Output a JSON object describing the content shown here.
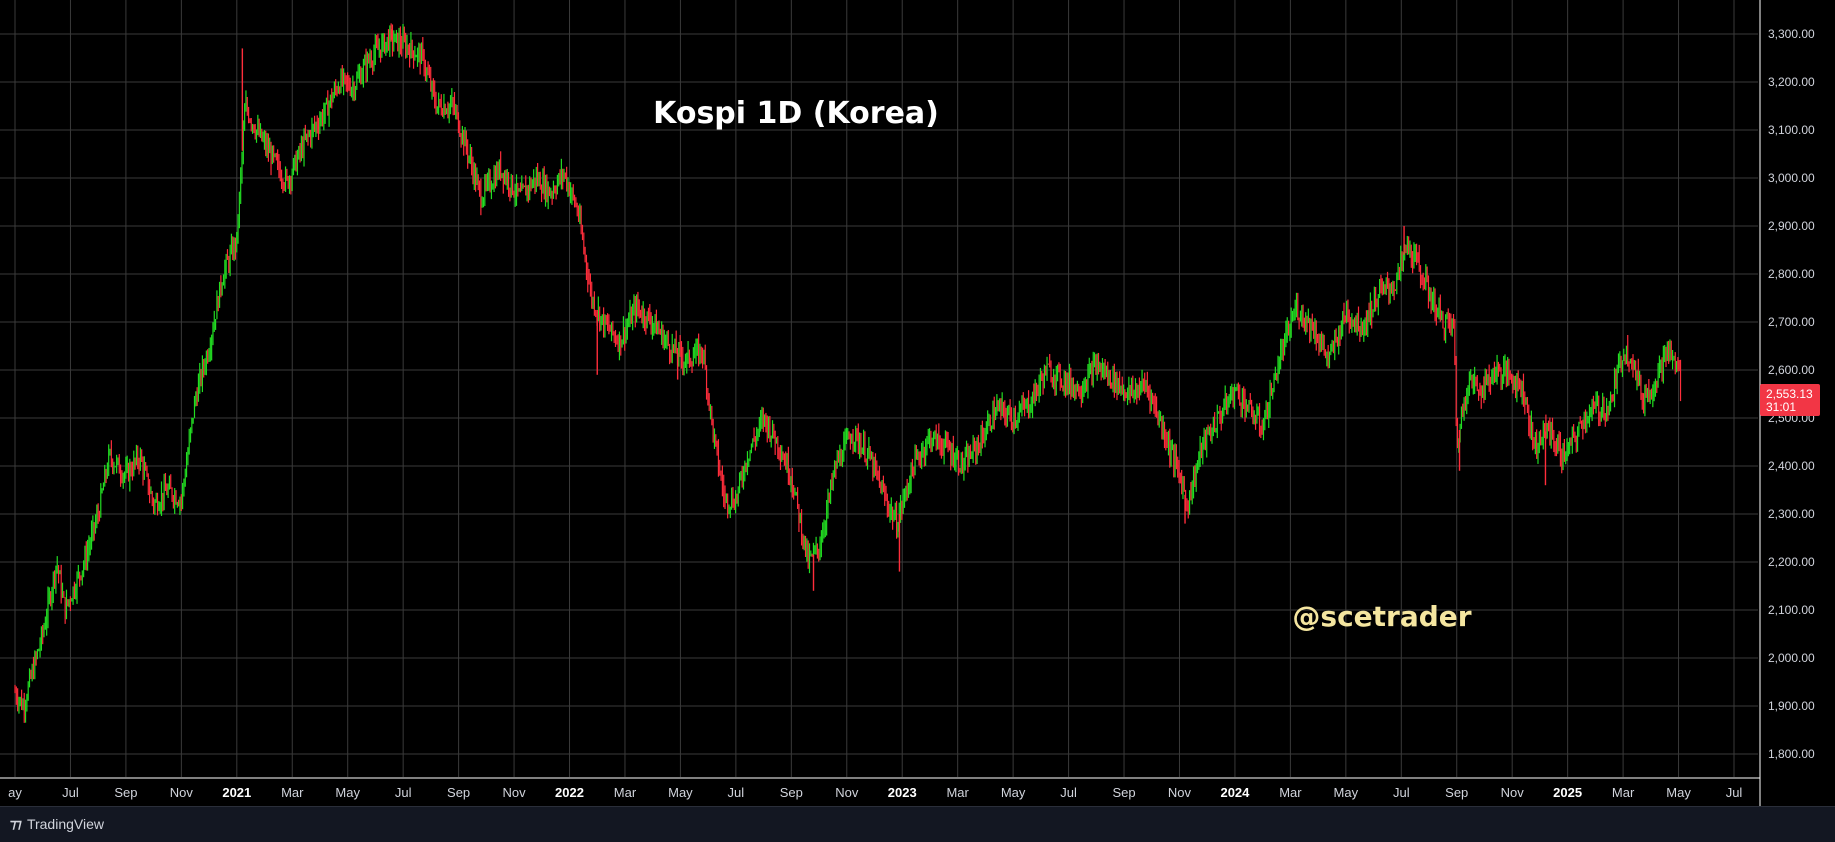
{
  "app": {
    "brand": "TradingView",
    "brand_logo_icon": "tradingview-logo-icon"
  },
  "colors": {
    "background": "#000000",
    "grid": "#3a3a3a",
    "up": "#22dd22",
    "down": "#ff2d3b",
    "axis_text": "#d1d4dc",
    "title": "#ffffff",
    "watermark": "#f5e6a0",
    "price_tag": "#f23645"
  },
  "chart_data": {
    "type": "candlestick",
    "title": "Kospi 1D (Korea)",
    "watermark": "@scetrader",
    "last_price": {
      "value": "2,553.13",
      "countdown": "31:01"
    },
    "ylim": [
      1750,
      3340
    ],
    "y_ticks": [
      "3,300.00",
      "3,200.00",
      "3,100.00",
      "3,000.00",
      "2,900.00",
      "2,800.00",
      "2,700.00",
      "2,600.00",
      "2,500.00",
      "2,400.00",
      "2,300.00",
      "2,200.00",
      "2,100.00",
      "2,000.00",
      "1,900.00",
      "1,800.00"
    ],
    "x_ticks": [
      "ay",
      "Jul",
      "Sep",
      "Nov",
      "2021",
      "Mar",
      "May",
      "Jul",
      "Sep",
      "Nov",
      "2022",
      "Mar",
      "May",
      "Jul",
      "Sep",
      "Nov",
      "2023",
      "Mar",
      "May",
      "Jul",
      "Sep",
      "Nov",
      "2024",
      "Mar",
      "May",
      "Jul",
      "Sep",
      "Nov",
      "2025",
      "Mar",
      "May",
      "Jul"
    ],
    "x_tick_months": [
      0,
      2,
      4,
      6,
      8,
      10,
      12,
      14,
      16,
      18,
      20,
      22,
      24,
      26,
      28,
      30,
      32,
      34,
      36,
      38,
      40,
      42,
      44,
      46,
      48,
      50,
      52,
      54,
      56,
      58,
      60,
      62
    ],
    "x_range_months": [
      -0.1,
      63.2
    ],
    "grid": true,
    "series_path": [
      {
        "m": 0.0,
        "v": 1930
      },
      {
        "m": 0.3,
        "v": 1900
      },
      {
        "m": 1.0,
        "v": 2050
      },
      {
        "m": 1.5,
        "v": 2200
      },
      {
        "m": 1.8,
        "v": 2100
      },
      {
        "m": 2.5,
        "v": 2200
      },
      {
        "m": 3.0,
        "v": 2300
      },
      {
        "m": 3.4,
        "v": 2420
      },
      {
        "m": 4.0,
        "v": 2380
      },
      {
        "m": 4.5,
        "v": 2420
      },
      {
        "m": 5.0,
        "v": 2320
      },
      {
        "m": 5.5,
        "v": 2350
      },
      {
        "m": 6.0,
        "v": 2330
      },
      {
        "m": 6.5,
        "v": 2540
      },
      {
        "m": 7.0,
        "v": 2650
      },
      {
        "m": 7.5,
        "v": 2800
      },
      {
        "m": 8.0,
        "v": 2870
      },
      {
        "m": 8.3,
        "v": 3150
      },
      {
        "m": 8.7,
        "v": 3100
      },
      {
        "m": 9.2,
        "v": 3050
      },
      {
        "m": 9.8,
        "v": 2990
      },
      {
        "m": 10.5,
        "v": 3080
      },
      {
        "m": 11.2,
        "v": 3140
      },
      {
        "m": 11.7,
        "v": 3200
      },
      {
        "m": 12.2,
        "v": 3190
      },
      {
        "m": 12.8,
        "v": 3250
      },
      {
        "m": 13.5,
        "v": 3290
      },
      {
        "m": 14.0,
        "v": 3280
      },
      {
        "m": 14.7,
        "v": 3250
      },
      {
        "m": 15.2,
        "v": 3150
      },
      {
        "m": 15.8,
        "v": 3150
      },
      {
        "m": 16.3,
        "v": 3060
      },
      {
        "m": 16.8,
        "v": 2960
      },
      {
        "m": 17.5,
        "v": 3020
      },
      {
        "m": 18.2,
        "v": 2960
      },
      {
        "m": 18.8,
        "v": 3000
      },
      {
        "m": 19.3,
        "v": 2970
      },
      {
        "m": 19.8,
        "v": 3010
      },
      {
        "m": 20.3,
        "v": 2930
      },
      {
        "m": 20.8,
        "v": 2750
      },
      {
        "m": 21.2,
        "v": 2700
      },
      {
        "m": 21.8,
        "v": 2660
      },
      {
        "m": 22.4,
        "v": 2730
      },
      {
        "m": 23.0,
        "v": 2700
      },
      {
        "m": 23.6,
        "v": 2650
      },
      {
        "m": 24.2,
        "v": 2620
      },
      {
        "m": 24.8,
        "v": 2640
      },
      {
        "m": 25.2,
        "v": 2460
      },
      {
        "m": 25.6,
        "v": 2330
      },
      {
        "m": 26.0,
        "v": 2330
      },
      {
        "m": 26.4,
        "v": 2420
      },
      {
        "m": 27.0,
        "v": 2500
      },
      {
        "m": 27.5,
        "v": 2450
      },
      {
        "m": 28.0,
        "v": 2380
      },
      {
        "m": 28.6,
        "v": 2200
      },
      {
        "m": 29.0,
        "v": 2230
      },
      {
        "m": 29.6,
        "v": 2400
      },
      {
        "m": 30.2,
        "v": 2470
      },
      {
        "m": 30.8,
        "v": 2420
      },
      {
        "m": 31.4,
        "v": 2330
      },
      {
        "m": 31.8,
        "v": 2280
      },
      {
        "m": 32.4,
        "v": 2400
      },
      {
        "m": 33.0,
        "v": 2460
      },
      {
        "m": 33.6,
        "v": 2440
      },
      {
        "m": 34.2,
        "v": 2400
      },
      {
        "m": 34.8,
        "v": 2450
      },
      {
        "m": 35.4,
        "v": 2520
      },
      {
        "m": 36.0,
        "v": 2500
      },
      {
        "m": 36.6,
        "v": 2530
      },
      {
        "m": 37.2,
        "v": 2600
      },
      {
        "m": 37.8,
        "v": 2580
      },
      {
        "m": 38.4,
        "v": 2560
      },
      {
        "m": 39.0,
        "v": 2610
      },
      {
        "m": 39.6,
        "v": 2580
      },
      {
        "m": 40.2,
        "v": 2550
      },
      {
        "m": 40.8,
        "v": 2570
      },
      {
        "m": 41.4,
        "v": 2480
      },
      {
        "m": 42.0,
        "v": 2380
      },
      {
        "m": 42.3,
        "v": 2320
      },
      {
        "m": 42.8,
        "v": 2440
      },
      {
        "m": 43.4,
        "v": 2500
      },
      {
        "m": 44.0,
        "v": 2560
      },
      {
        "m": 44.6,
        "v": 2510
      },
      {
        "m": 45.0,
        "v": 2480
      },
      {
        "m": 45.6,
        "v": 2620
      },
      {
        "m": 46.2,
        "v": 2730
      },
      {
        "m": 46.8,
        "v": 2690
      },
      {
        "m": 47.4,
        "v": 2620
      },
      {
        "m": 48.0,
        "v": 2720
      },
      {
        "m": 48.6,
        "v": 2690
      },
      {
        "m": 49.2,
        "v": 2760
      },
      {
        "m": 49.8,
        "v": 2780
      },
      {
        "m": 50.2,
        "v": 2860
      },
      {
        "m": 50.6,
        "v": 2820
      },
      {
        "m": 51.0,
        "v": 2760
      },
      {
        "m": 51.5,
        "v": 2700
      },
      {
        "m": 51.9,
        "v": 2690
      },
      {
        "m": 52.0,
        "v": 2440
      },
      {
        "m": 52.4,
        "v": 2580
      },
      {
        "m": 52.9,
        "v": 2560
      },
      {
        "m": 53.4,
        "v": 2600
      },
      {
        "m": 53.9,
        "v": 2590
      },
      {
        "m": 54.4,
        "v": 2560
      },
      {
        "m": 54.8,
        "v": 2440
      },
      {
        "m": 55.3,
        "v": 2480
      },
      {
        "m": 55.8,
        "v": 2420
      },
      {
        "m": 56.2,
        "v": 2450
      },
      {
        "m": 56.6,
        "v": 2500
      },
      {
        "m": 57.0,
        "v": 2520
      },
      {
        "m": 57.5,
        "v": 2520
      },
      {
        "m": 58.0,
        "v": 2640
      },
      {
        "m": 58.3,
        "v": 2630
      },
      {
        "m": 58.7,
        "v": 2540
      },
      {
        "m": 59.1,
        "v": 2570
      },
      {
        "m": 59.6,
        "v": 2640
      },
      {
        "m": 60.0,
        "v": 2600
      },
      {
        "m": 60.1,
        "v": 2553
      }
    ],
    "spikes": [
      {
        "m": 8.2,
        "high": 3270
      },
      {
        "m": 23.9,
        "low": 2580
      },
      {
        "m": 21.0,
        "low": 2590
      },
      {
        "m": 52.1,
        "low": 2390
      },
      {
        "m": 31.9,
        "low": 2180
      },
      {
        "m": 28.8,
        "low": 2140
      },
      {
        "m": 42.2,
        "low": 2280
      },
      {
        "m": 13.6,
        "high": 3310
      },
      {
        "m": 50.1,
        "high": 2900
      },
      {
        "m": 55.2,
        "low": 2360
      }
    ]
  }
}
